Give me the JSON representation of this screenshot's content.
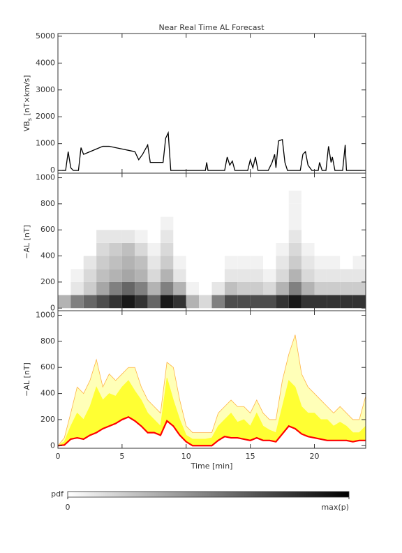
{
  "chart_data": [
    {
      "type": "line",
      "title": "Near Real Time AL Forecast",
      "y_label": "VBs [nT×km/s]",
      "color": "#000000",
      "xlim": [
        0,
        24
      ],
      "xticks": [
        0,
        5,
        10,
        15,
        20
      ],
      "ylim": [
        -100,
        5100
      ],
      "yticks": [
        0,
        1000,
        2000,
        3000,
        4000,
        5000
      ],
      "x": [
        0,
        0.6,
        0.8,
        1.0,
        1.2,
        1.6,
        1.8,
        2.0,
        2.5,
        3.0,
        3.5,
        4.0,
        4.5,
        5.0,
        5.5,
        6.0,
        6.3,
        6.6,
        7.0,
        7.2,
        8.2,
        8.4,
        8.6,
        8.8,
        11.5,
        11.6,
        11.7,
        13.0,
        13.2,
        13.4,
        13.6,
        13.8,
        14.8,
        15.0,
        15.2,
        15.4,
        15.6,
        16.4,
        16.7,
        16.9,
        17.0,
        17.2,
        17.5,
        17.7,
        17.9,
        18.9,
        19.1,
        19.3,
        19.5,
        19.8,
        20.3,
        20.4,
        20.6,
        20.9,
        21.1,
        21.3,
        21.4,
        21.6,
        22.2,
        22.4,
        22.5,
        24
      ],
      "values": [
        0,
        0,
        700,
        100,
        0,
        0,
        850,
        600,
        700,
        800,
        900,
        900,
        850,
        800,
        750,
        700,
        400,
        600,
        950,
        300,
        300,
        1200,
        1400,
        0,
        0,
        300,
        0,
        0,
        500,
        200,
        350,
        0,
        0,
        400,
        100,
        500,
        0,
        0,
        300,
        600,
        100,
        1100,
        1150,
        300,
        0,
        0,
        600,
        700,
        200,
        0,
        0,
        300,
        0,
        0,
        900,
        300,
        500,
        0,
        0,
        950,
        0,
        0
      ]
    },
    {
      "type": "heatmap",
      "y_label": "−AL [nT]",
      "xlim": [
        0,
        24
      ],
      "xticks": [
        0,
        5,
        10,
        15,
        20
      ],
      "ylim": [
        -20,
        1035
      ],
      "yticks": [
        0,
        200,
        400,
        600,
        800,
        1000
      ],
      "xbins": [
        0,
        1,
        2,
        3,
        4,
        5,
        6,
        7,
        8,
        9,
        10,
        11,
        12,
        13,
        14,
        15,
        16,
        17,
        18,
        19,
        20,
        21,
        22,
        23,
        24
      ],
      "ybins": [
        0,
        100,
        200,
        300,
        400,
        500,
        600,
        700,
        800,
        900
      ],
      "z": [
        [
          0.3,
          0,
          0,
          0,
          0,
          0,
          0,
          0,
          0
        ],
        [
          0.5,
          0.1,
          0.05,
          0,
          0,
          0,
          0,
          0,
          0
        ],
        [
          0.6,
          0.2,
          0.15,
          0.1,
          0,
          0,
          0,
          0,
          0
        ],
        [
          0.7,
          0.35,
          0.25,
          0.2,
          0.15,
          0.1,
          0,
          0,
          0
        ],
        [
          0.8,
          0.5,
          0.3,
          0.25,
          0.2,
          0.1,
          0,
          0,
          0
        ],
        [
          0.9,
          0.6,
          0.35,
          0.3,
          0.25,
          0.1,
          0,
          0,
          0
        ],
        [
          0.8,
          0.5,
          0.3,
          0.25,
          0.15,
          0.05,
          0,
          0,
          0
        ],
        [
          0.6,
          0.3,
          0.15,
          0.1,
          0.05,
          0,
          0,
          0,
          0
        ],
        [
          0.9,
          0.5,
          0.3,
          0.2,
          0.15,
          0.1,
          0.05,
          0,
          0
        ],
        [
          0.8,
          0.3,
          0.1,
          0.05,
          0,
          0,
          0,
          0,
          0
        ],
        [
          0.3,
          0.05,
          0,
          0,
          0,
          0,
          0,
          0,
          0
        ],
        [
          0.15,
          0,
          0,
          0,
          0,
          0,
          0,
          0,
          0
        ],
        [
          0.5,
          0.1,
          0,
          0,
          0,
          0,
          0,
          0,
          0
        ],
        [
          0.7,
          0.25,
          0.1,
          0.05,
          0,
          0,
          0,
          0,
          0
        ],
        [
          0.7,
          0.2,
          0.1,
          0.05,
          0,
          0,
          0,
          0,
          0
        ],
        [
          0.7,
          0.2,
          0.1,
          0.05,
          0,
          0,
          0,
          0,
          0
        ],
        [
          0.7,
          0.15,
          0.05,
          0,
          0,
          0,
          0,
          0,
          0
        ],
        [
          0.8,
          0.3,
          0.15,
          0.1,
          0.05,
          0,
          0,
          0,
          0
        ],
        [
          0.9,
          0.5,
          0.3,
          0.2,
          0.15,
          0.1,
          0.05,
          0.05,
          0.05
        ],
        [
          0.8,
          0.3,
          0.15,
          0.1,
          0.05,
          0,
          0,
          0,
          0
        ],
        [
          0.8,
          0.2,
          0.1,
          0.05,
          0,
          0,
          0,
          0,
          0
        ],
        [
          0.8,
          0.2,
          0.1,
          0.05,
          0,
          0,
          0,
          0,
          0
        ],
        [
          0.8,
          0.2,
          0.1,
          0,
          0,
          0,
          0,
          0,
          0
        ],
        [
          0.8,
          0.2,
          0.1,
          0.05,
          0,
          0,
          0,
          0,
          0
        ]
      ],
      "colorbar_label": "pdf",
      "colorbar_ticks": [
        0,
        {
          "value": 1,
          "label": "max(p)"
        }
      ]
    },
    {
      "type": "band",
      "y_label": "−AL [nT]",
      "x_label": "Time [min]",
      "xlim": [
        0,
        24
      ],
      "xticks": [
        0,
        5,
        10,
        15,
        20
      ],
      "ylim": [
        -20,
        1035
      ],
      "yticks": [
        0,
        200,
        400,
        600,
        800,
        1000
      ],
      "x": [
        0,
        0.5,
        1,
        1.5,
        2,
        2.5,
        3,
        3.5,
        4,
        4.5,
        5,
        5.5,
        6,
        6.5,
        7,
        7.5,
        8,
        8.5,
        9,
        9.5,
        10,
        10.5,
        11,
        11.5,
        12,
        12.5,
        13,
        13.5,
        14,
        14.5,
        15,
        15.5,
        16,
        16.5,
        17,
        17.5,
        18,
        18.5,
        19,
        19.5,
        20,
        20.5,
        21,
        21.5,
        22,
        22.5,
        23,
        23.5,
        24
      ],
      "series": [
        {
          "color": "#ff0000",
          "values": [
            0,
            5,
            50,
            60,
            50,
            80,
            100,
            130,
            150,
            170,
            200,
            220,
            190,
            150,
            100,
            100,
            80,
            190,
            150,
            80,
            30,
            0,
            0,
            0,
            0,
            40,
            70,
            60,
            60,
            50,
            40,
            60,
            40,
            40,
            30,
            90,
            150,
            130,
            90,
            70,
            60,
            50,
            40,
            40,
            40,
            40,
            30,
            40,
            40
          ]
        },
        {
          "color": "#ffff33",
          "values": [
            0,
            30,
            150,
            250,
            200,
            300,
            450,
            350,
            400,
            380,
            450,
            500,
            420,
            350,
            250,
            200,
            150,
            520,
            350,
            200,
            80,
            50,
            50,
            50,
            60,
            150,
            200,
            250,
            180,
            200,
            150,
            250,
            150,
            120,
            100,
            300,
            500,
            450,
            300,
            250,
            250,
            200,
            200,
            150,
            180,
            150,
            100,
            100,
            150
          ]
        },
        {
          "color": "#ffb347",
          "fill": "#ffffb8",
          "values": [
            0,
            60,
            250,
            450,
            400,
            500,
            660,
            450,
            550,
            500,
            550,
            600,
            600,
            450,
            350,
            300,
            250,
            640,
            600,
            350,
            150,
            100,
            100,
            100,
            100,
            250,
            300,
            350,
            300,
            300,
            250,
            350,
            250,
            200,
            200,
            500,
            700,
            850,
            550,
            450,
            400,
            350,
            300,
            250,
            300,
            250,
            200,
            200,
            380
          ]
        }
      ]
    }
  ]
}
